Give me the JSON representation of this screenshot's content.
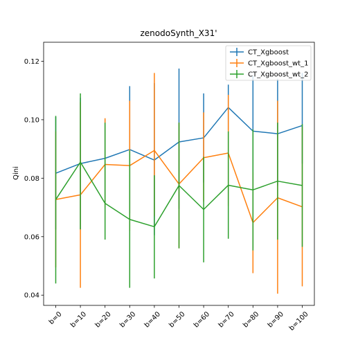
{
  "chart_data": {
    "type": "line",
    "title": "zenodoSynth_X31'",
    "xlabel": "",
    "ylabel": "Qini",
    "categories": [
      "b=0",
      "b=10",
      "b=20",
      "b=30",
      "b=40",
      "b=50",
      "b=60",
      "b=70",
      "b=80",
      "b=90",
      "b=100"
    ],
    "ylim": [
      0.0365,
      0.1265
    ],
    "yticks": [
      0.04,
      0.06,
      0.08,
      0.1,
      0.12
    ],
    "ytick_labels": [
      "0.04",
      "0.06",
      "0.08",
      "0.10",
      "0.12"
    ],
    "grid": false,
    "legend_position": "top-right",
    "series": [
      {
        "name": "CT_Xgboost",
        "color": "#1f77b4",
        "values": [
          0.0817,
          0.085,
          0.0868,
          0.0898,
          0.0862,
          0.0924,
          0.0938,
          0.1042,
          0.0961,
          0.0952,
          0.098
        ],
        "err_low": [
          0.0625,
          0.0625,
          0.0735,
          0.068,
          0.0605,
          0.0695,
          0.0785,
          0.0965,
          0.056,
          0.0775,
          0.085
        ],
        "err_high": [
          0.101,
          0.1075,
          0.1,
          0.1115,
          0.1125,
          0.1175,
          0.109,
          0.112,
          0.115,
          0.114,
          0.116
        ]
      },
      {
        "name": "CT_Xgboost_wt_1",
        "color": "#ff7f0e",
        "values": [
          0.0727,
          0.0743,
          0.0847,
          0.0843,
          0.0895,
          0.078,
          0.087,
          0.0886,
          0.0648,
          0.0733,
          0.0702
        ],
        "err_low": [
          0.0495,
          0.0425,
          0.07,
          0.062,
          0.067,
          0.056,
          0.072,
          0.0705,
          0.0475,
          0.0405,
          0.043
        ],
        "err_high": [
          0.096,
          0.106,
          0.1005,
          0.1065,
          0.116,
          0.099,
          0.1025,
          0.1085,
          0.082,
          0.1065,
          0.0975
        ]
      },
      {
        "name": "CT_Xgboost_wt_2",
        "color": "#2ca02c",
        "values": [
          0.0727,
          0.0855,
          0.0714,
          0.0659,
          0.0634,
          0.0775,
          0.0693,
          0.0776,
          0.076,
          0.079,
          0.0775
        ],
        "err_low": [
          0.044,
          0.0625,
          0.059,
          0.0425,
          0.0457,
          0.056,
          0.0512,
          0.0593,
          0.0553,
          0.059,
          0.0565
        ],
        "err_high": [
          0.1013,
          0.109,
          0.099,
          0.0895,
          0.081,
          0.099,
          0.0873,
          0.096,
          0.0967,
          0.099,
          0.0985
        ]
      }
    ]
  }
}
